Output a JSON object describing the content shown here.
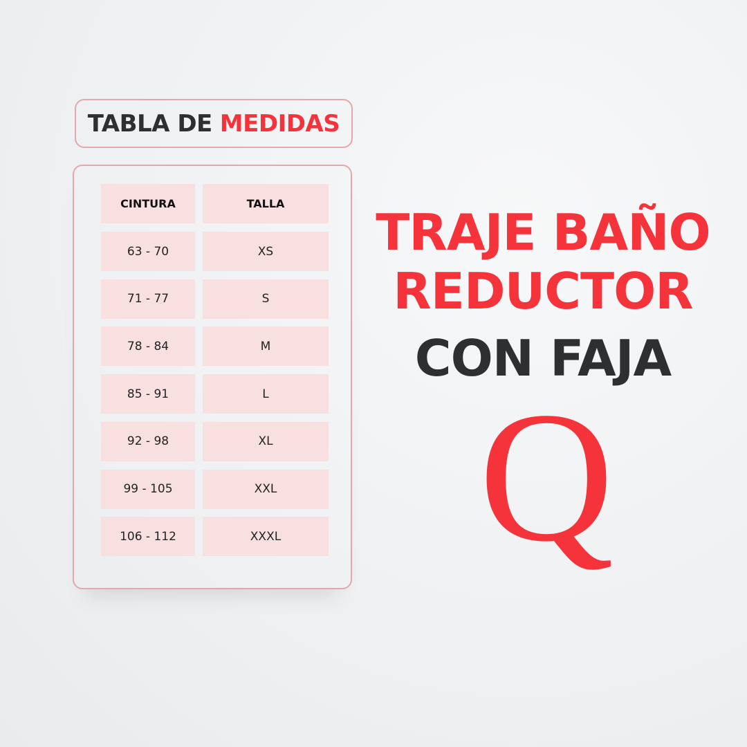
{
  "title": {
    "part1": "TABLA DE",
    "part2": "MEDIDAS"
  },
  "table": {
    "headers": [
      "CINTURA",
      "TALLA"
    ],
    "rows": [
      [
        "63 - 70",
        "XS"
      ],
      [
        "71 - 77",
        "S"
      ],
      [
        "78 - 84",
        "M"
      ],
      [
        "85 - 91",
        "L"
      ],
      [
        "92 - 98",
        "XL"
      ],
      [
        "99 - 105",
        "XXL"
      ],
      [
        "106 - 112",
        "XXXL"
      ]
    ]
  },
  "headline": {
    "line1": "TRAJE BAÑO",
    "line2": "REDUCTOR",
    "line3": "CON FAJA"
  },
  "logo": {
    "letter": "Q"
  },
  "colors": {
    "accent": "#f5333a",
    "dark": "#2e2f31",
    "cell": "#f8dfe0",
    "border": "#e3a9aa"
  }
}
